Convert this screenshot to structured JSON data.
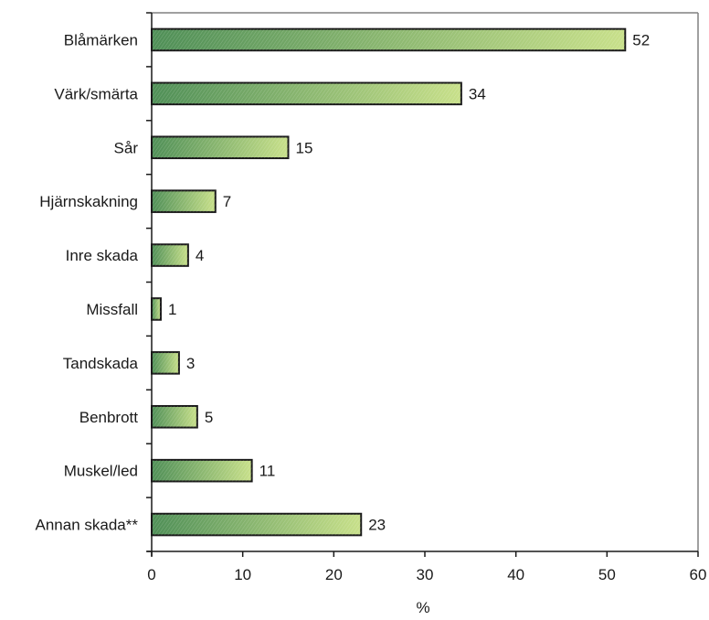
{
  "chart_data": {
    "type": "bar",
    "orientation": "horizontal",
    "categories": [
      "Blåmärken",
      "Värk/smärta",
      "Sår",
      "Hjärnskakning",
      "Inre skada",
      "Missfall",
      "Tandskada",
      "Benbrott",
      "Muskel/led",
      "Annan skada**"
    ],
    "values": [
      52,
      34,
      15,
      7,
      4,
      1,
      3,
      5,
      11,
      23
    ],
    "xlabel": "%",
    "ylabel": "",
    "xlim": [
      0,
      60
    ],
    "xticks": [
      0,
      10,
      20,
      30,
      40,
      50,
      60
    ],
    "grid": false,
    "legend": "none",
    "colors": {
      "bar_start": "#4f8f57",
      "bar_end": "#c8e08a",
      "bar_stroke": "#1a1a1a",
      "frame": "#808080",
      "axis": "#1a1a1a"
    }
  }
}
